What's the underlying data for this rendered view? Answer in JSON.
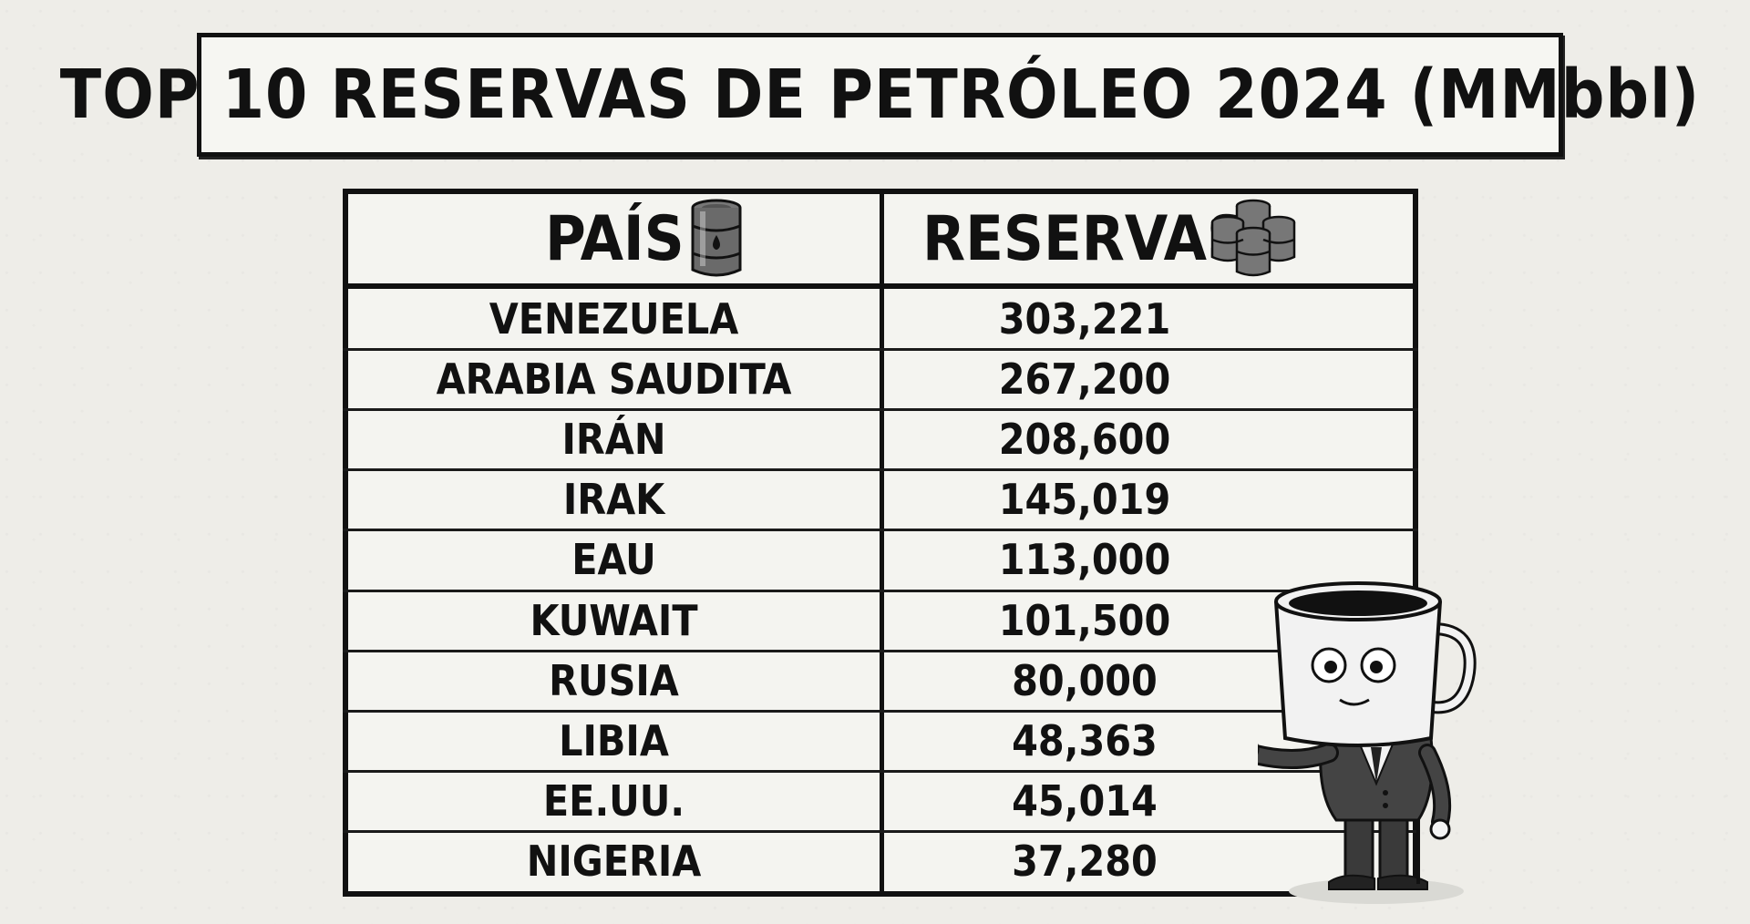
{
  "title": "TOP 10 RESERVAS DE PETRÓLEO 2024 (MMbbl)",
  "headers": {
    "country": "PAÍS",
    "reserves": "RESERVAS"
  },
  "icons": {
    "country_header": "oil-barrel-icon",
    "reserves_header": "oil-barrels-stack-icon",
    "mascot": "coffee-mug-businessman-mascot"
  },
  "chart_data": {
    "type": "table",
    "title": "TOP 10 RESERVAS DE PETRÓLEO 2024 (MMbbl)",
    "columns": [
      "PAÍS",
      "RESERVAS"
    ],
    "rows": [
      [
        "VENEZUELA",
        "303,221"
      ],
      [
        "ARABIA SAUDITA",
        "267,200"
      ],
      [
        "IRÁN",
        "208,600"
      ],
      [
        "IRAK",
        "145,019"
      ],
      [
        "EAU",
        "113,000"
      ],
      [
        "KUWAIT",
        "101,500"
      ],
      [
        "RUSIA",
        "80,000"
      ],
      [
        "LIBIA",
        "48,363"
      ],
      [
        "EE.UU.",
        "45,014"
      ],
      [
        "NIGERIA",
        "37,280"
      ]
    ]
  }
}
